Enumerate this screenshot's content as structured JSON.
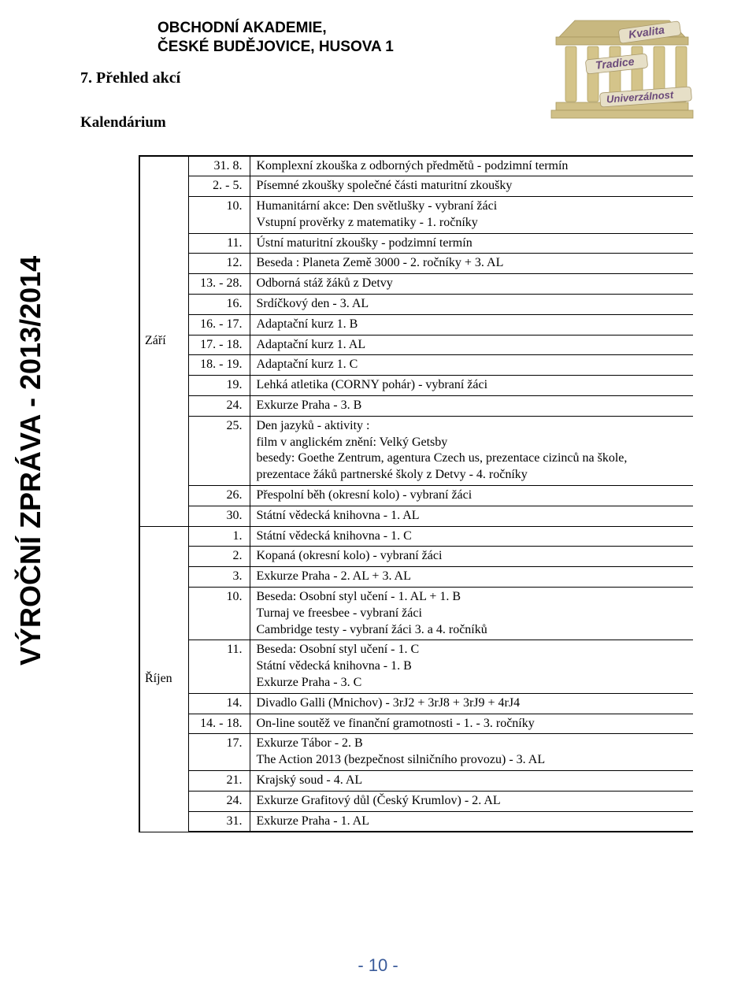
{
  "header": {
    "line1": "OBCHODNÍ AKADEMIE,",
    "line2": "ČESKÉ BUDĚJOVICE, HUSOVA 1"
  },
  "section_number_title": "7. Přehled akcí",
  "subtitle": "Kalendárium",
  "sidebar_text": "VÝROČNÍ ZPRÁVA - 2013/2014",
  "logo_words": {
    "w1": "Kvalita",
    "w2": "Tradice",
    "w3": "Univerzálnost"
  },
  "months": [
    {
      "name": "Září",
      "rows": [
        {
          "date": "31. 8.",
          "desc": "Komplexní zkouška z odborných předmětů - podzimní termín"
        },
        {
          "date": "2. - 5.",
          "desc": "Písemné zkoušky společné části maturitní zkoušky"
        },
        {
          "date": "10.",
          "desc": "Humanitární akce: Den světlušky - vybraní žáci\nVstupní prověrky z matematiky - 1. ročníky"
        },
        {
          "date": "11.",
          "desc": "Ústní maturitní zkoušky - podzimní termín"
        },
        {
          "date": "12.",
          "desc": "Beseda : Planeta Země 3000 - 2. ročníky + 3. AL"
        },
        {
          "date": "13. - 28.",
          "desc": "Odborná stáž žáků z Detvy"
        },
        {
          "date": "16.",
          "desc": "Srdíčkový den - 3. AL"
        },
        {
          "date": "16. - 17.",
          "desc": "Adaptační kurz 1. B"
        },
        {
          "date": "17. - 18.",
          "desc": "Adaptační kurz 1. AL"
        },
        {
          "date": "18. - 19.",
          "desc": "Adaptační kurz 1. C"
        },
        {
          "date": "19.",
          "desc": "Lehká atletika (CORNY pohár) - vybraní žáci"
        },
        {
          "date": "24.",
          "desc": "Exkurze Praha - 3. B"
        },
        {
          "date": "25.",
          "desc": "Den jazyků - aktivity :\nfilm v anglickém znění: Velký Getsby\nbesedy: Goethe Zentrum, agentura Czech us, prezentace cizinců na škole,\nprezentace žáků partnerské školy z Detvy - 4. ročníky"
        },
        {
          "date": "26.",
          "desc": "Přespolní běh (okresní kolo) - vybraní žáci"
        },
        {
          "date": "30.",
          "desc": "Státní vědecká knihovna - 1. AL"
        }
      ]
    },
    {
      "name": "Říjen",
      "rows": [
        {
          "date": "1.",
          "desc": "Státní vědecká knihovna - 1. C"
        },
        {
          "date": "2.",
          "desc": "Kopaná (okresní kolo) - vybraní žáci"
        },
        {
          "date": "3.",
          "desc": "Exkurze Praha - 2. AL + 3. AL"
        },
        {
          "date": "10.",
          "desc": "Beseda: Osobní styl učení - 1. AL + 1. B\nTurnaj ve freesbee - vybraní žáci\nCambridge testy - vybraní žáci 3. a 4. ročníků"
        },
        {
          "date": "11.",
          "desc": "Beseda: Osobní styl učení - 1. C\nStátní vědecká knihovna - 1. B\nExkurze Praha - 3. C"
        },
        {
          "date": "14.",
          "desc": "Divadlo Galli (Mnichov) - 3rJ2 + 3rJ8 + 3rJ9 + 4rJ4"
        },
        {
          "date": "14. - 18.",
          "desc": "On-line soutěž ve finanční gramotnosti - 1. - 3. ročníky"
        },
        {
          "date": "17.",
          "desc": "Exkurze Tábor - 2. B\nThe Action 2013 (bezpečnost silničního provozu) - 3. AL"
        },
        {
          "date": "21.",
          "desc": "Krajský soud - 4. AL"
        },
        {
          "date": "24.",
          "desc": "Exkurze Grafitový důl (Český Krumlov) - 2. AL"
        },
        {
          "date": "31.",
          "desc": "Exkurze Praha - 1. AL"
        }
      ]
    }
  ],
  "page_number": "- 10 -",
  "colors": {
    "footer_text": "#3a5b9a",
    "border": "#000000"
  }
}
